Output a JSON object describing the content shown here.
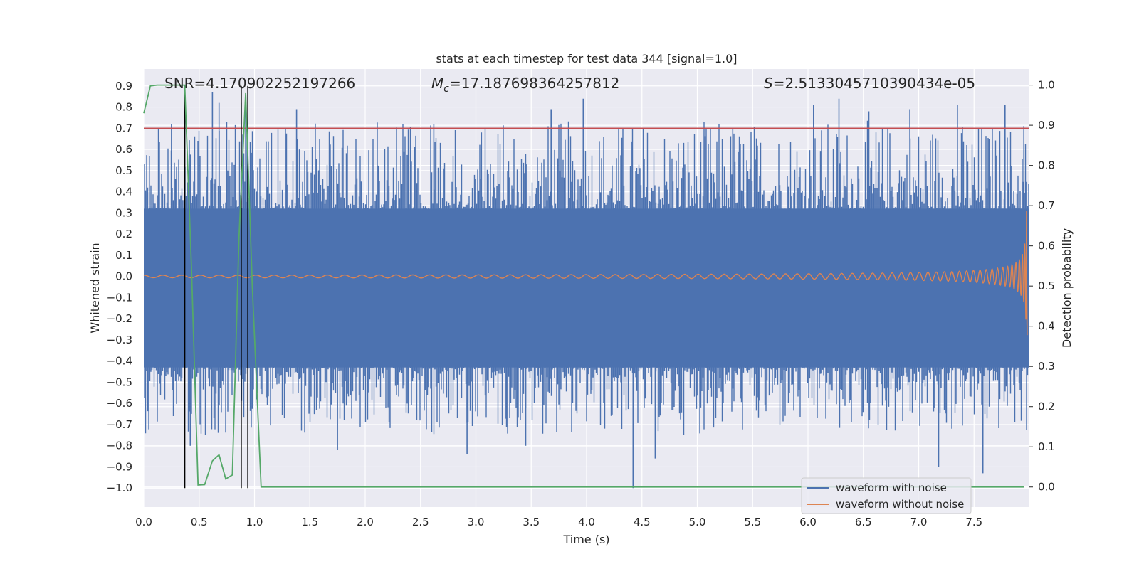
{
  "chart_data": {
    "type": "line",
    "title": "stats at each timestep for test data 344 [signal=1.0]",
    "xlabel": "Time (s)",
    "ylabel_left": "Whitened strain",
    "ylabel_right": "Detection probability",
    "xlim": [
      0.0,
      8.0
    ],
    "ylim_left": [
      -1.09,
      0.98
    ],
    "ylim_right": [
      -0.05,
      1.04
    ],
    "x_ticks": [
      "0.0",
      "0.5",
      "1.0",
      "1.5",
      "2.0",
      "2.5",
      "3.0",
      "3.5",
      "4.0",
      "4.5",
      "5.0",
      "5.5",
      "6.0",
      "6.5",
      "7.0",
      "7.5"
    ],
    "y_ticks_left": [
      "0.9",
      "0.8",
      "0.7",
      "0.6",
      "0.5",
      "0.4",
      "0.3",
      "0.2",
      "0.1",
      "0.0",
      "-0.1",
      "-0.2",
      "-0.3",
      "-0.4",
      "-0.5",
      "-0.6",
      "-0.7",
      "-0.8",
      "-0.9",
      "-1.0"
    ],
    "y_ticks_right": [
      "1.0",
      "0.9",
      "0.8",
      "0.7",
      "0.6",
      "0.5",
      "0.4",
      "0.3",
      "0.2",
      "0.1",
      "0.0"
    ],
    "annotations": {
      "snr": "SNR=4.170902252197266",
      "mc_symbol": "M",
      "mc_sub": "c",
      "mc_value": "=17.187698364257812",
      "s_symbol": "S",
      "s_value": "=2.5133045710390434e-05"
    },
    "threshold": {
      "value": 0.7,
      "axis": "left",
      "color": "#c44e52"
    },
    "vertical_markers_x": [
      0.37,
      0.88,
      0.94
    ],
    "legend": {
      "location": "lower-right",
      "entries": [
        {
          "label": "waveform with noise",
          "color": "#4c72b0"
        },
        {
          "label": "waveform without noise",
          "color": "#dd8452"
        }
      ]
    },
    "noise_envelope": {
      "color": "#4c72b0",
      "band_upper": 0.32,
      "band_lower": -0.43,
      "spike_peaks": [
        {
          "x": 0.05,
          "y": 0.57
        },
        {
          "x": 0.25,
          "y": 0.72
        },
        {
          "x": 0.37,
          "y": 0.81
        },
        {
          "x": 0.42,
          "y": -0.8
        },
        {
          "x": 0.62,
          "y": 0.87
        },
        {
          "x": 0.68,
          "y": 0.82
        },
        {
          "x": 0.88,
          "y": 0.82
        },
        {
          "x": 0.92,
          "y": 0.84
        },
        {
          "x": 1.38,
          "y": 0.79
        },
        {
          "x": 1.75,
          "y": -0.82
        },
        {
          "x": 2.62,
          "y": 0.72
        },
        {
          "x": 2.92,
          "y": -0.84
        },
        {
          "x": 3.05,
          "y": 0.68
        },
        {
          "x": 3.45,
          "y": -0.8
        },
        {
          "x": 3.68,
          "y": 0.79
        },
        {
          "x": 3.97,
          "y": 0.84
        },
        {
          "x": 4.42,
          "y": -1.0
        },
        {
          "x": 4.62,
          "y": -0.86
        },
        {
          "x": 5.32,
          "y": 0.7
        },
        {
          "x": 6.05,
          "y": 0.81
        },
        {
          "x": 6.28,
          "y": 0.84
        },
        {
          "x": 6.55,
          "y": 0.78
        },
        {
          "x": 6.92,
          "y": 0.79
        },
        {
          "x": 7.18,
          "y": -0.9
        },
        {
          "x": 7.35,
          "y": 0.81
        },
        {
          "x": 7.58,
          "y": -0.93
        },
        {
          "x": 7.78,
          "y": 0.81
        },
        {
          "x": 7.95,
          "y": 0.71
        }
      ]
    },
    "series": [
      {
        "name": "waveform without noise",
        "color": "#dd8452",
        "model": "chirp",
        "base_amplitude": 0.006,
        "merger_time": 7.98,
        "peak_amplitude": 0.32
      },
      {
        "name": "detection probability",
        "color": "#55a868",
        "axis": "right",
        "x": [
          0.0,
          0.06,
          0.12,
          0.25,
          0.37,
          0.43,
          0.49,
          0.55,
          0.62,
          0.68,
          0.74,
          0.8,
          0.86,
          0.92,
          0.98,
          1.06,
          7.95
        ],
        "y": [
          0.93,
          0.998,
          1.0,
          1.0,
          1.0,
          0.55,
          0.005,
          0.006,
          0.065,
          0.08,
          0.02,
          0.03,
          0.62,
          0.98,
          0.5,
          0.0,
          0.0
        ]
      }
    ]
  }
}
